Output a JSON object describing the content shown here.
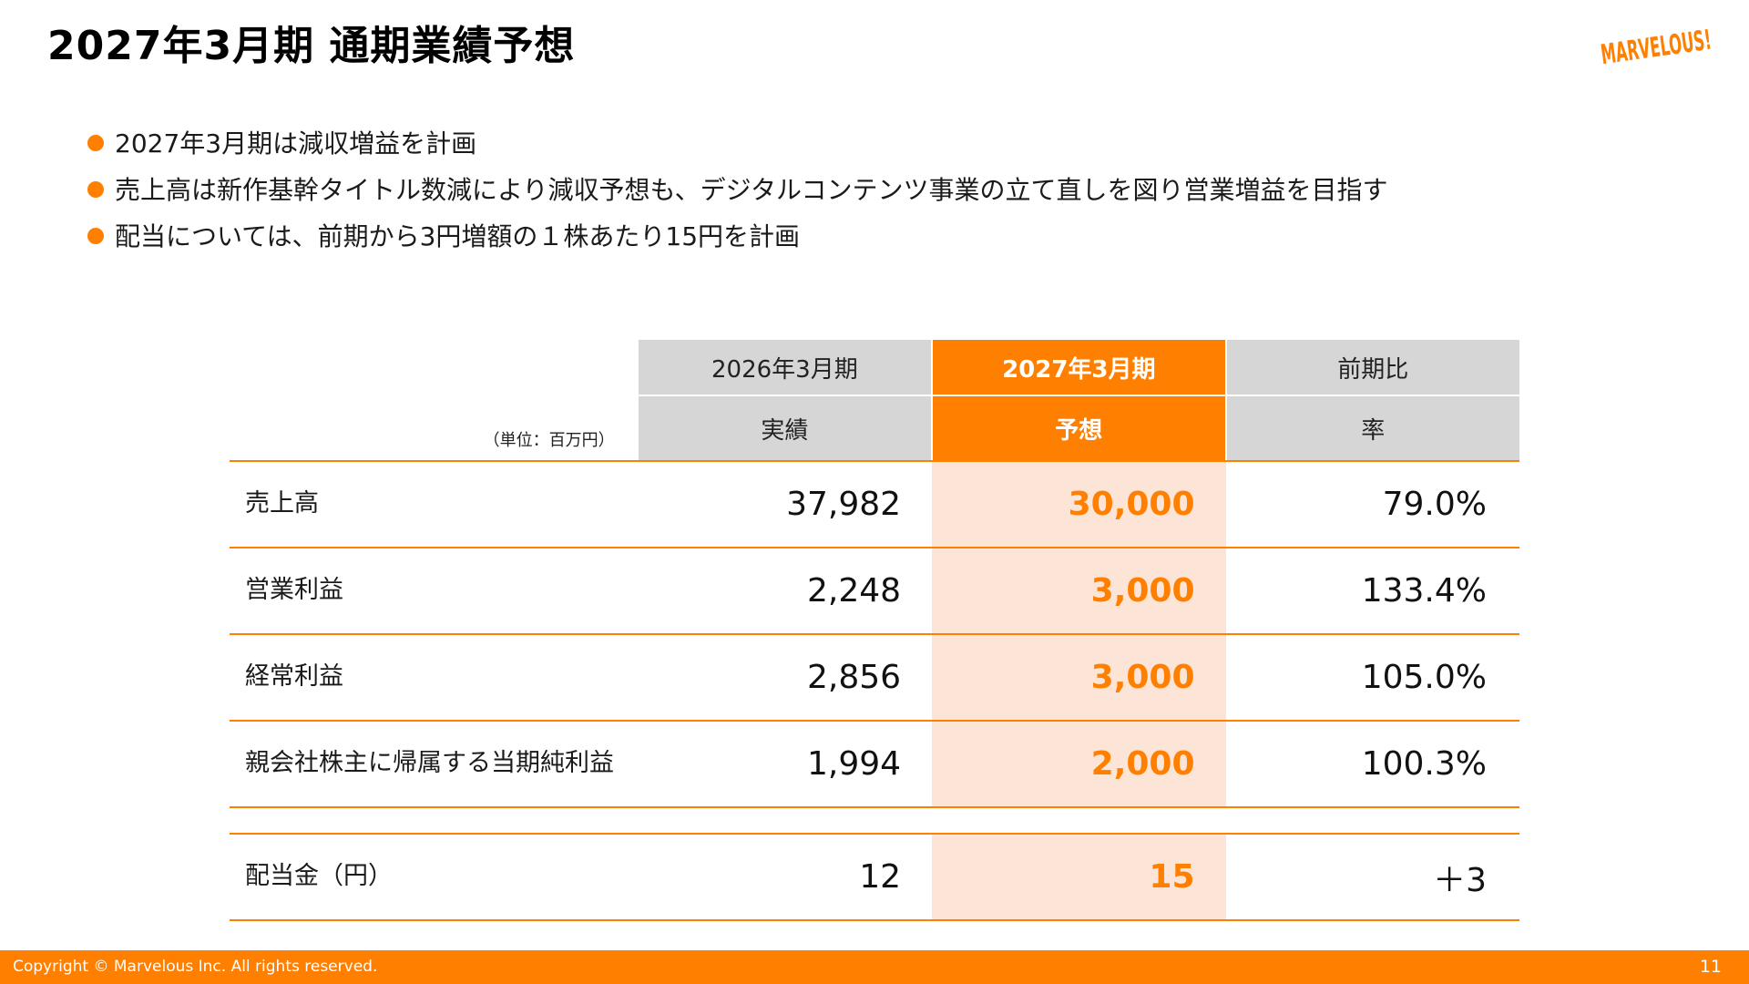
{
  "page": {
    "title": "2027年3月期 通期業績予想",
    "logo_text": "MARVELOUS!",
    "bullets": [
      "2027年3月期は減収増益を計画",
      "売上高は新作基幹タイトル数減により減収予想も、デジタルコンテンツ事業の立て直しを図り営業増益を目指す",
      "配当については、前期から3円増額の１株あたり15円を計画"
    ]
  },
  "table": {
    "unit": "（単位：百万円）",
    "headers": {
      "prev_period": "2026年3月期",
      "prev_type": "実績",
      "fc_period": "2027年3月期",
      "fc_type": "予想",
      "cmp_period": "前期比",
      "cmp_type": "率"
    },
    "rows": [
      {
        "label": "売上高",
        "actual": "37,982",
        "forecast": "30,000",
        "rate": "79.0%"
      },
      {
        "label": "営業利益",
        "actual": "2,248",
        "forecast": "3,000",
        "rate": "133.4%"
      },
      {
        "label": "経常利益",
        "actual": "2,856",
        "forecast": "3,000",
        "rate": "105.0%"
      },
      {
        "label": "親会社株主に帰属する当期純利益",
        "actual": "1,994",
        "forecast": "2,000",
        "rate": "100.3%"
      }
    ],
    "dividend": {
      "label": "配当金（円）",
      "actual": "12",
      "forecast": "15",
      "rate": "＋3"
    }
  },
  "footer": {
    "copyright": "Copyright © Marvelous Inc. All rights reserved.",
    "page_number": "11"
  },
  "colors": {
    "accent": "#ff7f00",
    "forecast_bg": "#fce5d7",
    "header_gray": "#d6d6d6"
  }
}
